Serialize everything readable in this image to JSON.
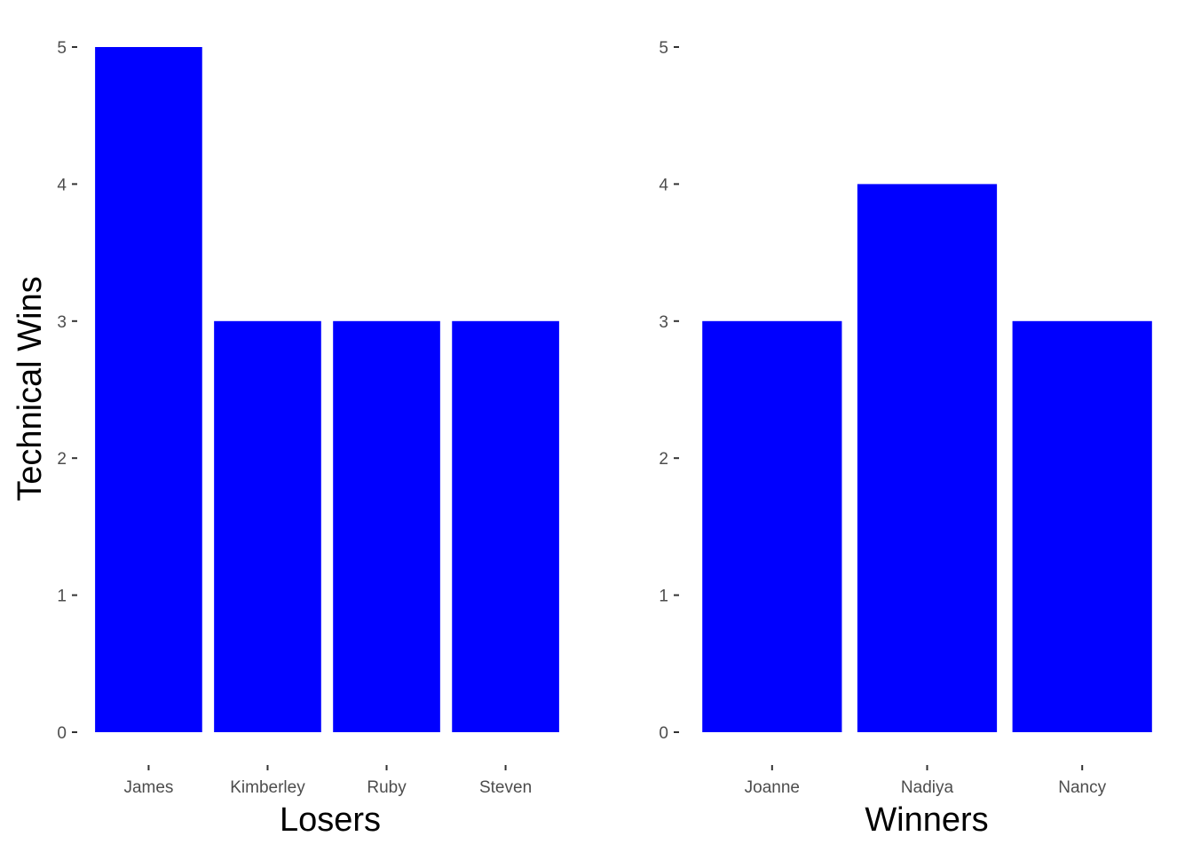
{
  "colors": {
    "bar": "#0000FF",
    "tick": "#333333",
    "tick_label": "#4d4d4d",
    "axis_title": "#000000"
  },
  "chart_data": [
    {
      "type": "bar",
      "categories": [
        "James",
        "Kimberley",
        "Ruby",
        "Steven"
      ],
      "values": [
        5,
        3,
        3,
        3
      ],
      "xlabel": "Losers",
      "ylabel": "Technical Wins",
      "ylim": [
        0,
        5
      ],
      "yticks": [
        0,
        1,
        2,
        3,
        4,
        5
      ],
      "grid": false
    },
    {
      "type": "bar",
      "categories": [
        "Joanne",
        "Nadiya",
        "Nancy"
      ],
      "values": [
        3,
        4,
        3
      ],
      "xlabel": "Winners",
      "ylabel": "",
      "ylim": [
        0,
        5
      ],
      "yticks": [
        0,
        1,
        2,
        3,
        4,
        5
      ],
      "grid": false
    }
  ]
}
